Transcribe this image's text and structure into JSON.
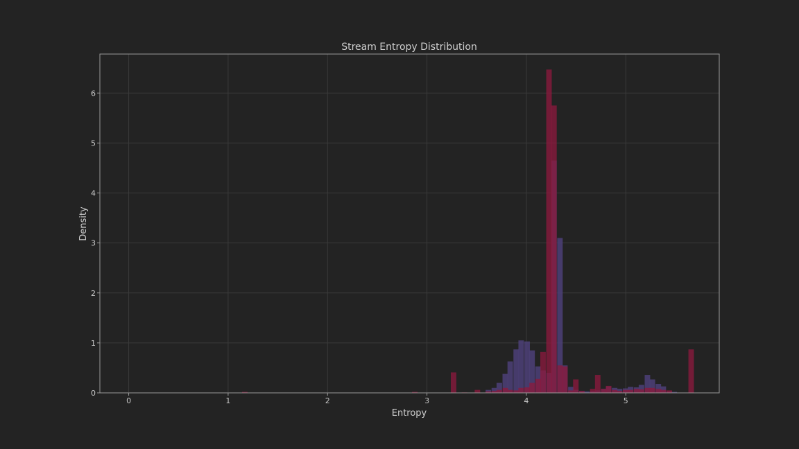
{
  "chart_data": {
    "type": "histogram",
    "title": "Stream Entropy Distribution",
    "xlabel": "Entropy",
    "ylabel": "Density",
    "xlim": [
      -0.29,
      5.94
    ],
    "ylim": [
      0,
      6.78
    ],
    "xticks": [
      "0",
      "1",
      "2",
      "3",
      "4",
      "5"
    ],
    "yticks": [
      "0",
      "1",
      "2",
      "3",
      "4",
      "5",
      "6"
    ],
    "grid": true,
    "bin_width": 0.0553,
    "background": "#232323",
    "plot_border_color": "#9a9a9a",
    "grid_color": "#3a3a3a",
    "series": [
      {
        "color": "#4c3f78",
        "alpha": 0.85,
        "bins": [
          {
            "x": 3.59,
            "y": 0.06
          },
          {
            "x": 3.65,
            "y": 0.1
          },
          {
            "x": 3.7,
            "y": 0.2
          },
          {
            "x": 3.76,
            "y": 0.38
          },
          {
            "x": 3.81,
            "y": 0.63
          },
          {
            "x": 3.87,
            "y": 0.87
          },
          {
            "x": 3.92,
            "y": 1.05
          },
          {
            "x": 3.98,
            "y": 1.03
          },
          {
            "x": 4.03,
            "y": 0.85
          },
          {
            "x": 4.09,
            "y": 0.53
          },
          {
            "x": 4.14,
            "y": 0.45
          },
          {
            "x": 4.2,
            "y": 0.4
          },
          {
            "x": 4.25,
            "y": 4.65
          },
          {
            "x": 4.31,
            "y": 3.1
          },
          {
            "x": 4.36,
            "y": 0.55
          },
          {
            "x": 4.42,
            "y": 0.12
          },
          {
            "x": 4.47,
            "y": 0.06
          },
          {
            "x": 4.53,
            "y": 0.04
          },
          {
            "x": 4.58,
            "y": 0.03
          },
          {
            "x": 4.64,
            "y": 0.04
          },
          {
            "x": 4.69,
            "y": 0.05
          },
          {
            "x": 4.75,
            "y": 0.08
          },
          {
            "x": 4.8,
            "y": 0.13
          },
          {
            "x": 4.86,
            "y": 0.1
          },
          {
            "x": 4.91,
            "y": 0.08
          },
          {
            "x": 4.97,
            "y": 0.09
          },
          {
            "x": 5.02,
            "y": 0.12
          },
          {
            "x": 5.08,
            "y": 0.11
          },
          {
            "x": 5.13,
            "y": 0.16
          },
          {
            "x": 5.19,
            "y": 0.36
          },
          {
            "x": 5.24,
            "y": 0.27
          },
          {
            "x": 5.3,
            "y": 0.18
          },
          {
            "x": 5.35,
            "y": 0.13
          },
          {
            "x": 5.41,
            "y": 0.03
          },
          {
            "x": 5.46,
            "y": 0.02
          }
        ]
      },
      {
        "color": "#8a1a3e",
        "alpha": 0.78,
        "bins": [
          {
            "x": 1.14,
            "y": 0.02
          },
          {
            "x": 2.85,
            "y": 0.02
          },
          {
            "x": 3.24,
            "y": 0.41
          },
          {
            "x": 3.35,
            "y": 0.01
          },
          {
            "x": 3.48,
            "y": 0.06
          },
          {
            "x": 3.59,
            "y": 0.03
          },
          {
            "x": 3.65,
            "y": 0.04
          },
          {
            "x": 3.7,
            "y": 0.06
          },
          {
            "x": 3.76,
            "y": 0.1
          },
          {
            "x": 3.81,
            "y": 0.06
          },
          {
            "x": 3.87,
            "y": 0.05
          },
          {
            "x": 3.92,
            "y": 0.1
          },
          {
            "x": 3.98,
            "y": 0.11
          },
          {
            "x": 4.03,
            "y": 0.2
          },
          {
            "x": 4.09,
            "y": 0.28
          },
          {
            "x": 4.14,
            "y": 0.82
          },
          {
            "x": 4.2,
            "y": 6.47
          },
          {
            "x": 4.25,
            "y": 5.75
          },
          {
            "x": 4.31,
            "y": 0.55
          },
          {
            "x": 4.36,
            "y": 0.53
          },
          {
            "x": 4.42,
            "y": 0.05
          },
          {
            "x": 4.47,
            "y": 0.27
          },
          {
            "x": 4.53,
            "y": 0.04
          },
          {
            "x": 4.64,
            "y": 0.08
          },
          {
            "x": 4.69,
            "y": 0.36
          },
          {
            "x": 4.75,
            "y": 0.08
          },
          {
            "x": 4.8,
            "y": 0.14
          },
          {
            "x": 4.86,
            "y": 0.06
          },
          {
            "x": 4.91,
            "y": 0.04
          },
          {
            "x": 4.97,
            "y": 0.06
          },
          {
            "x": 5.02,
            "y": 0.06
          },
          {
            "x": 5.08,
            "y": 0.08
          },
          {
            "x": 5.13,
            "y": 0.07
          },
          {
            "x": 5.19,
            "y": 0.1
          },
          {
            "x": 5.24,
            "y": 0.1
          },
          {
            "x": 5.3,
            "y": 0.08
          },
          {
            "x": 5.35,
            "y": 0.06
          },
          {
            "x": 5.41,
            "y": 0.05
          },
          {
            "x": 5.63,
            "y": 0.87
          }
        ]
      }
    ]
  }
}
